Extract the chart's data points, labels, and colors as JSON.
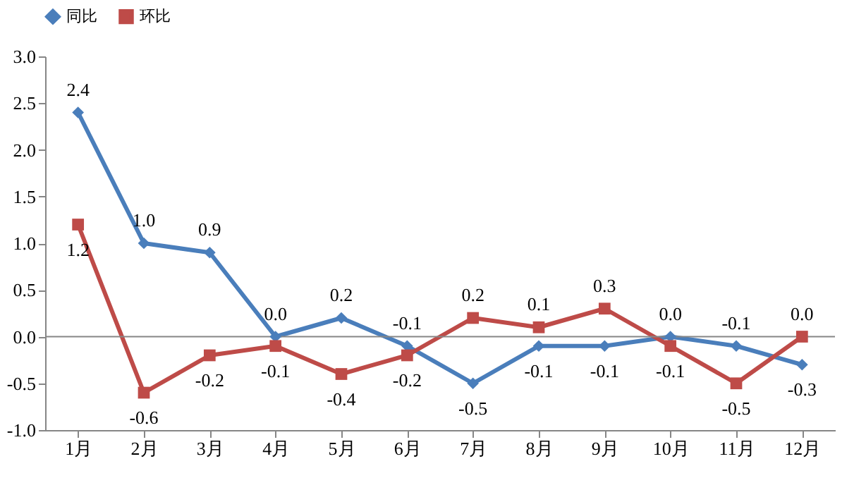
{
  "chart_data": {
    "type": "line",
    "categories": [
      "1月",
      "2月",
      "3月",
      "4月",
      "5月",
      "6月",
      "7月",
      "8月",
      "9月",
      "10月",
      "11月",
      "12月"
    ],
    "series": [
      {
        "name": "同比",
        "color": "#4a7ebb",
        "marker": "diamond",
        "values": [
          2.4,
          1.0,
          0.9,
          0.0,
          0.2,
          -0.1,
          -0.5,
          -0.1,
          -0.1,
          0.0,
          -0.1,
          -0.3
        ],
        "value_labels": [
          "2.4",
          "1.0",
          "0.9",
          "0.0",
          "0.2",
          "-0.1",
          "-0.5",
          "-0.1",
          "-0.1",
          "0.0",
          "-0.1",
          "-0.3"
        ]
      },
      {
        "name": "环比",
        "color": "#be4b48",
        "marker": "square",
        "values": [
          1.2,
          -0.6,
          -0.2,
          -0.1,
          -0.4,
          -0.2,
          0.2,
          0.1,
          0.3,
          -0.1,
          -0.5,
          0.0
        ],
        "value_labels": [
          "1.2",
          "-0.6",
          "-0.2",
          "-0.1",
          "-0.4",
          "-0.2",
          "0.2",
          "0.1",
          "0.3",
          "-0.1",
          "-0.5",
          "0.0"
        ]
      }
    ],
    "ylim": [
      -1.0,
      3.0
    ],
    "yticks": [
      {
        "value": -1.0,
        "label": "-1.0"
      },
      {
        "value": -0.5,
        "label": "-0.5"
      },
      {
        "value": 0,
        "label": "0.0"
      },
      {
        "value": 0.5,
        "label": "0.5"
      },
      {
        "value": 1.0,
        "label": "1.0"
      },
      {
        "value": 1.5,
        "label": "1.5"
      },
      {
        "value": 2.0,
        "label": "2.0"
      },
      {
        "value": 2.5,
        "label": "2.5"
      },
      {
        "value": 3.0,
        "label": "3.0"
      }
    ],
    "ref_lines": [
      {
        "axis": "y",
        "value": 0,
        "color": "#868686"
      }
    ],
    "legend": "top",
    "grid": false,
    "line_style": "solid"
  }
}
